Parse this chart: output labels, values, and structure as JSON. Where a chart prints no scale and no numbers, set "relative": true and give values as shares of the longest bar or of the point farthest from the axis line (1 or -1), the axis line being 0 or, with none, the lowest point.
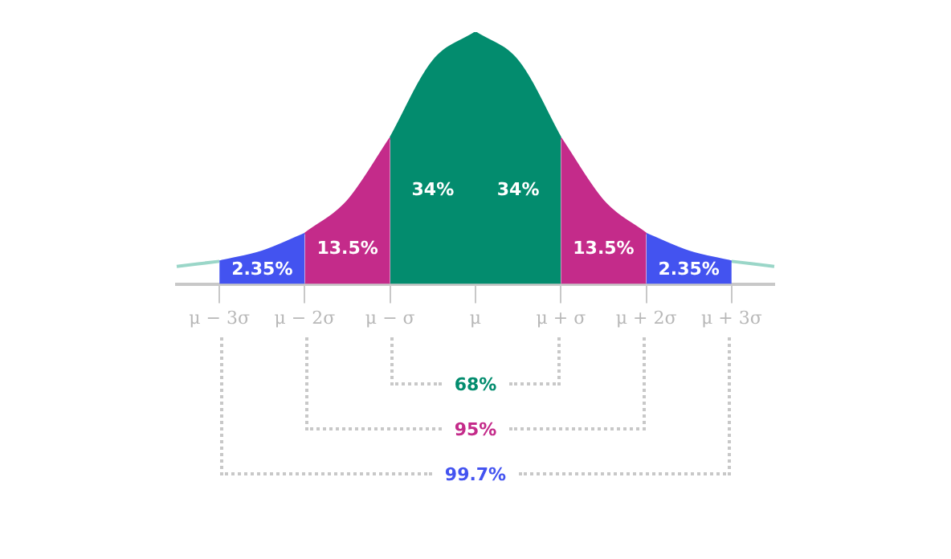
{
  "chart_data": {
    "type": "area",
    "relative": true,
    "categories": [
      null,
      "μ − 3σ",
      null,
      "μ − 2σ",
      null,
      "μ − σ",
      null,
      "μ",
      null,
      "μ + σ",
      null,
      "μ + 2σ",
      null,
      "μ + 3σ",
      null
    ],
    "series": [
      {
        "type": "line",
        "color": "#9ad6c8",
        "values": [
          0.07,
          0.09,
          null,
          null,
          null,
          null,
          null,
          null,
          null,
          null,
          null,
          null,
          null,
          null,
          null
        ]
      },
      {
        "color": "#4353f0",
        "values": [
          null,
          0.09,
          0.13,
          0.2,
          null,
          null,
          null,
          null,
          null,
          null,
          null,
          null,
          null,
          null,
          null
        ]
      },
      {
        "color": "#c42b8a",
        "values": [
          null,
          null,
          null,
          0.2,
          0.33,
          0.58,
          null,
          null,
          null,
          null,
          null,
          null,
          null,
          null,
          null
        ]
      },
      {
        "color": "#038c6e",
        "values": [
          null,
          null,
          null,
          null,
          null,
          0.58,
          0.885,
          1,
          null,
          null,
          null,
          null,
          null,
          null,
          null
        ]
      },
      {
        "color": "#038c6e",
        "values": [
          null,
          null,
          null,
          null,
          null,
          null,
          null,
          1,
          0.885,
          0.58,
          null,
          null,
          null,
          null,
          null
        ]
      },
      {
        "color": "#c42b8a",
        "values": [
          null,
          null,
          null,
          null,
          null,
          null,
          null,
          null,
          null,
          0.58,
          0.33,
          0.2,
          null,
          null,
          null
        ]
      },
      {
        "color": "#4353f0",
        "values": [
          null,
          null,
          null,
          null,
          null,
          null,
          null,
          null,
          null,
          null,
          null,
          0.2,
          0.13,
          0.09,
          null
        ]
      },
      {
        "type": "line",
        "color": "#9ad6c8",
        "values": [
          null,
          null,
          null,
          null,
          null,
          null,
          null,
          null,
          null,
          null,
          null,
          null,
          null,
          0.09,
          0.07
        ]
      }
    ],
    "annotations": [
      "2.35%",
      "13.5%",
      "34%",
      "34%",
      "13.5%",
      "2.35%",
      "68%",
      "95%",
      "99.7%"
    ]
  }
}
